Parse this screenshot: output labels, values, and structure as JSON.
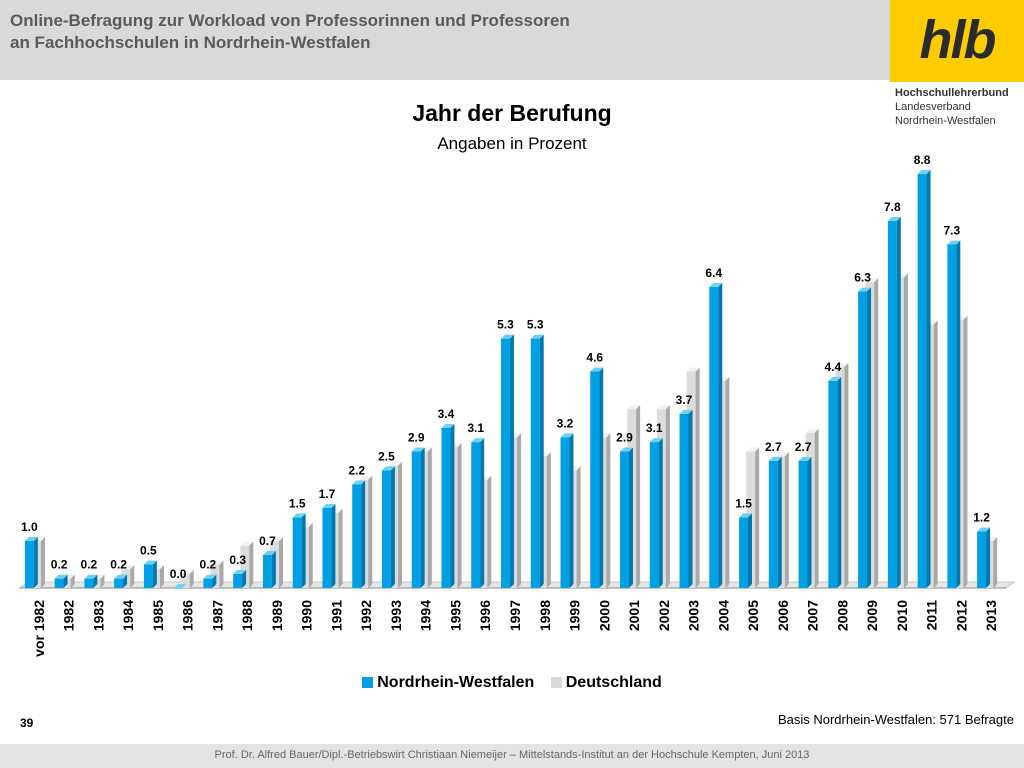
{
  "header": {
    "title": "Online-Befragung  zur  Workload von Professorinnen und Professoren\nan Fachhochschulen in Nordrhein-Westfalen"
  },
  "logo": {
    "text": "hlb",
    "org_name": "Hochschullehrerbund",
    "org_line2": "Landesverband",
    "org_line3": "Nordrhein-Westfalen"
  },
  "page_number": "39",
  "basis": "Basis Nordrhein-Westfalen: 571 Befragte",
  "footer": "Prof. Dr. Alfred Bauer/Dipl.-Betriebswirt Christiaan Niemeijer – Mittelstands-Institut an der Hochschule Kempten, Juni 2013",
  "colors": {
    "nrw": "#00a0e3",
    "de": "#d9d9d9"
  },
  "chart_data": {
    "type": "bar",
    "title": "Jahr der Berufung",
    "subtitle": "Angaben in Prozent",
    "categories": [
      "vor 1982",
      "1982",
      "1983",
      "1984",
      "1985",
      "1986",
      "1987",
      "1988",
      "1989",
      "1990",
      "1991",
      "1992",
      "1993",
      "1994",
      "1995",
      "1996",
      "1997",
      "1998",
      "1999",
      "2000",
      "2001",
      "2002",
      "2003",
      "2004",
      "2005",
      "2006",
      "2007",
      "2008",
      "2009",
      "2010",
      "2011",
      "2012",
      "2013"
    ],
    "series": [
      {
        "name": "Nordrhein-Westfalen",
        "values": [
          1.0,
          0.2,
          0.2,
          0.2,
          0.5,
          0.0,
          0.2,
          0.3,
          0.7,
          1.5,
          1.7,
          2.2,
          2.5,
          2.9,
          3.4,
          3.1,
          5.3,
          5.3,
          3.2,
          4.6,
          2.9,
          3.1,
          3.7,
          6.4,
          1.5,
          2.7,
          2.7,
          4.4,
          6.3,
          7.8,
          8.8,
          7.3,
          1.2
        ],
        "labels": [
          "1.0",
          "0.2",
          "0.2",
          "0.2",
          "0.5",
          "0.0",
          "0.2",
          "0.3",
          "0.7",
          "1.5",
          "1.7",
          "2.2",
          "2.5",
          "2.9",
          "3.4",
          "3.1",
          "5.3",
          "5.3",
          "3.2",
          "4.6",
          "2.9",
          "3.1",
          "3.7",
          "6.4",
          "1.5",
          "2.7",
          "2.7",
          "4.4",
          "6.3",
          "7.8",
          "8.8",
          "7.3",
          "1.2"
        ]
      },
      {
        "name": "Deutschland",
        "values": [
          1.0,
          0.2,
          0.2,
          0.4,
          0.4,
          0.3,
          0.5,
          0.9,
          1.0,
          1.3,
          1.6,
          2.3,
          2.6,
          2.9,
          3.0,
          2.3,
          3.2,
          2.8,
          2.5,
          3.2,
          3.8,
          3.8,
          4.6,
          4.4,
          2.9,
          2.8,
          3.3,
          4.7,
          6.5,
          6.6,
          5.6,
          5.7,
          1.0
        ]
      }
    ],
    "ylim": [
      0,
      9
    ],
    "legend": "bottom-center"
  }
}
